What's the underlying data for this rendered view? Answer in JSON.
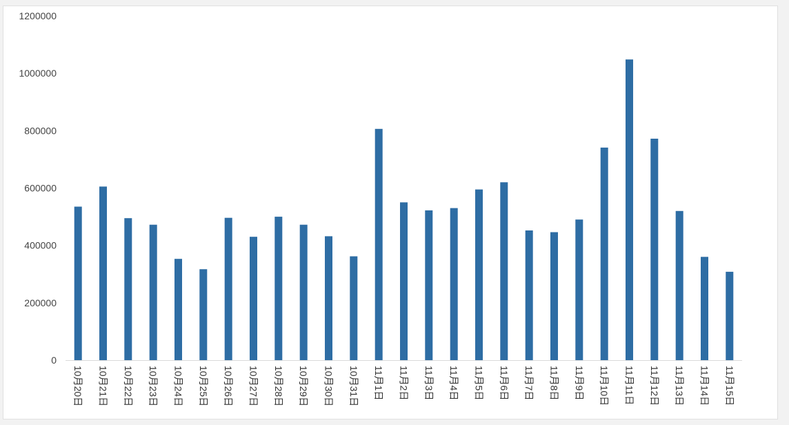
{
  "chart_data": {
    "type": "bar",
    "title": "",
    "xlabel": "",
    "ylabel": "",
    "ylim": [
      0,
      1200000
    ],
    "yticks": [
      0,
      200000,
      400000,
      600000,
      800000,
      1000000,
      1200000
    ],
    "ytick_labels": [
      "0",
      "200000",
      "400000",
      "600000",
      "800000",
      "1000000",
      "1200000"
    ],
    "grid": false,
    "legend": "none",
    "bar_color": "#2e6da4",
    "categories": [
      "10月20日",
      "10月21日",
      "10月22日",
      "10月23日",
      "10月24日",
      "10月25日",
      "10月26日",
      "10月27日",
      "10月28日",
      "10月29日",
      "10月30日",
      "10月31日",
      "11月1日",
      "11月2日",
      "11月3日",
      "11月4日",
      "11月5日",
      "11月6日",
      "11月7日",
      "11月8日",
      "11月9日",
      "11月10日",
      "11月11日",
      "11月12日",
      "11月13日",
      "11月14日",
      "11月15日"
    ],
    "values": [
      535000,
      605000,
      495000,
      472000,
      353000,
      317000,
      496000,
      430000,
      500000,
      472000,
      432000,
      362000,
      806000,
      550000,
      522000,
      530000,
      595000,
      620000,
      452000,
      446000,
      490000,
      741000,
      1048000,
      772000,
      520000,
      360000,
      308000
    ]
  }
}
